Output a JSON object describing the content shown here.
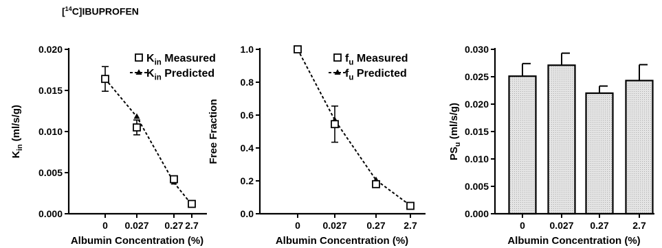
{
  "figure": {
    "title_sup": "14",
    "title_main": "C]IBUPROFEN",
    "title_open": "["
  },
  "chart_data": [
    {
      "type": "line",
      "categories": [
        "0",
        "0.027",
        "0.27",
        "2.7"
      ],
      "xlabel": "Albumin Concentration (%)",
      "ylabel": {
        "base": "K",
        "sub": "in",
        "rest": " (ml/s/g)"
      },
      "ylim": [
        0,
        0.02
      ],
      "yticks": [
        "0.000",
        "0.005",
        "0.010",
        "0.015",
        "0.020"
      ],
      "yticks_values": [
        0,
        0.005,
        0.01,
        0.015,
        0.02
      ],
      "legend": [
        {
          "base": "K",
          "sub": "in",
          "rest": " Measured",
          "marker": "square"
        },
        {
          "base": "K",
          "sub": "in",
          "rest": " Predicted",
          "marker": "triangle"
        }
      ],
      "series": [
        {
          "name": "Kin Measured",
          "values": [
            0.0164,
            0.0105,
            0.0042,
            0.0012
          ],
          "errors": [
            0.0015,
            0.0009,
            0.0003,
            0.0002
          ]
        },
        {
          "name": "Kin Predicted",
          "values": [
            0.0164,
            0.0118,
            0.0038,
            0.0011
          ]
        }
      ]
    },
    {
      "type": "line",
      "categories": [
        "0",
        "0.027",
        "0.27",
        "2.7"
      ],
      "xlabel": "Albumin Concentration (%)",
      "ylabel": {
        "base": "Free Fraction",
        "sub": "",
        "rest": ""
      },
      "ylim": [
        0,
        1.0
      ],
      "yticks": [
        "0.0",
        "0.2",
        "0.4",
        "0.6",
        "0.8",
        "1.0"
      ],
      "yticks_values": [
        0,
        0.2,
        0.4,
        0.6,
        0.8,
        1.0
      ],
      "legend": [
        {
          "base": "f",
          "sub": "u",
          "rest": " Measured",
          "marker": "square"
        },
        {
          "base": "f",
          "sub": "u",
          "rest": " Predicted",
          "marker": "triangle"
        }
      ],
      "series": [
        {
          "name": "fu Measured",
          "values": [
            1.0,
            0.545,
            0.18,
            0.048
          ],
          "errors": [
            0.0,
            0.11,
            0.0,
            0.0
          ]
        },
        {
          "name": "fu Predicted",
          "values": [
            1.0,
            0.57,
            0.205,
            0.05
          ]
        }
      ]
    },
    {
      "type": "bar",
      "categories": [
        "0",
        "0.027",
        "0.27",
        "2.7"
      ],
      "xlabel": "Albumin Concentration (%)",
      "ylabel": {
        "base": "PS",
        "sub": "u",
        "rest": " (ml/s/g)"
      },
      "ylim": [
        0,
        0.03
      ],
      "yticks": [
        "0.000",
        "0.005",
        "0.010",
        "0.015",
        "0.020",
        "0.025",
        "0.030"
      ],
      "yticks_values": [
        0,
        0.005,
        0.01,
        0.015,
        0.02,
        0.025,
        0.03
      ],
      "values": [
        0.0251,
        0.0271,
        0.022,
        0.0243
      ],
      "errors": [
        0.0023,
        0.0022,
        0.0013,
        0.0029
      ],
      "fill": "#e4e4e4"
    }
  ]
}
